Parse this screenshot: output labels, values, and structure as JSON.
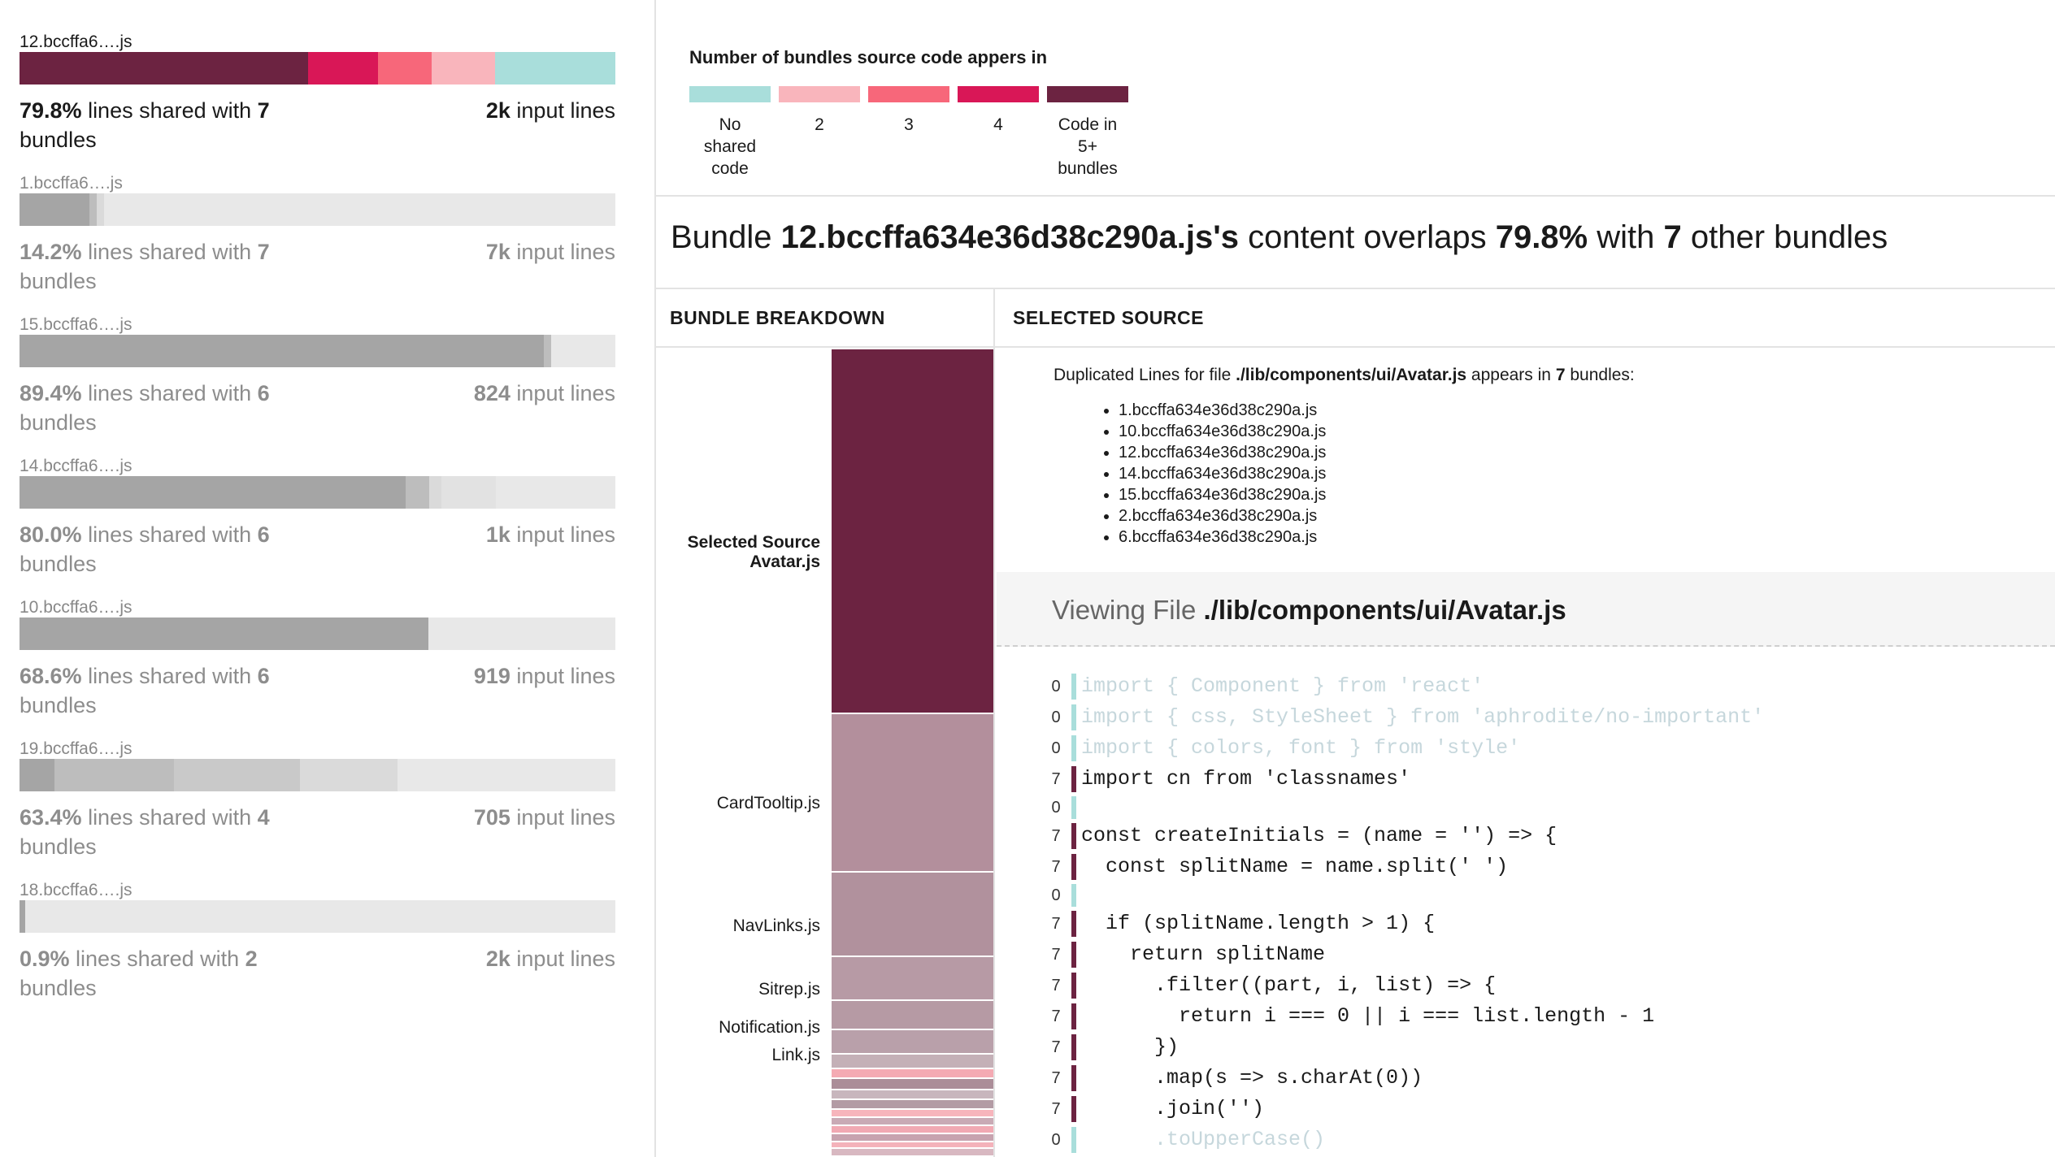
{
  "colors": {
    "none": "#a9dedb",
    "two": "#f9b5bc",
    "three": "#f7677a",
    "four": "#d91757",
    "five_plus": "#6c2341",
    "gray_dark": "#a5a5a5",
    "gray_mid": "#bdbdbd",
    "gray_light": "#dadada",
    "track": "#e8e8e8",
    "card_tooltip": "#b38f9c",
    "navlinks": "#b1919d",
    "faded_code": "#c6d7dc"
  },
  "bundles": [
    {
      "name": "12.bccffa6….js",
      "percent": "79.8%",
      "stat_mid": " lines shared with ",
      "shared_with": "7",
      "stat_end": " bundles",
      "lines": "2k",
      "lines_suffix": " input lines",
      "segments": [
        {
          "fraction": 0.484,
          "color": "five_plus"
        },
        {
          "fraction": 0.117,
          "color": "four"
        },
        {
          "fraction": 0.09,
          "color": "three"
        },
        {
          "fraction": 0.107,
          "color": "two"
        },
        {
          "fraction": 0.202,
          "color": "none"
        }
      ]
    },
    {
      "name": "1.bccffa6….js",
      "percent": "14.2%",
      "stat_mid": " lines shared with ",
      "shared_with": "7",
      "stat_end": " bundles",
      "lines": "7k",
      "lines_suffix": " input lines",
      "segments": [
        {
          "fraction": 0.118,
          "color": "gray_dark"
        },
        {
          "fraction": 0.012,
          "color": "gray_mid"
        },
        {
          "fraction": 0.012,
          "color": "gray_light"
        },
        {
          "fraction": 0.858,
          "color": "track"
        }
      ]
    },
    {
      "name": "15.bccffa6….js",
      "percent": "89.4%",
      "stat_mid": " lines shared with ",
      "shared_with": "6",
      "stat_end": " bundles",
      "lines": "824",
      "lines_suffix": " input lines",
      "segments": [
        {
          "fraction": 0.88,
          "color": "gray_dark"
        },
        {
          "fraction": 0.012,
          "color": "gray_mid"
        },
        {
          "fraction": 0.108,
          "color": "track"
        }
      ]
    },
    {
      "name": "14.bccffa6….js",
      "percent": "80.0%",
      "stat_mid": " lines shared with ",
      "shared_with": "6",
      "stat_end": " bundles",
      "lines": "1k",
      "lines_suffix": " input lines",
      "segments": [
        {
          "fraction": 0.648,
          "color": "gray_dark"
        },
        {
          "fraction": 0.04,
          "color": "gray_mid"
        },
        {
          "fraction": 0.02,
          "color": "gray_light"
        },
        {
          "fraction": 0.092,
          "color": "#e2e2e2"
        },
        {
          "fraction": 0.2,
          "color": "track"
        }
      ]
    },
    {
      "name": "10.bccffa6….js",
      "percent": "68.6%",
      "stat_mid": " lines shared with ",
      "shared_with": "6",
      "stat_end": " bundles",
      "lines": "919",
      "lines_suffix": " input lines",
      "segments": [
        {
          "fraction": 0.686,
          "color": "gray_dark"
        },
        {
          "fraction": 0.314,
          "color": "track"
        }
      ]
    },
    {
      "name": "19.bccffa6….js",
      "percent": "63.4%",
      "stat_mid": " lines shared with ",
      "shared_with": "4",
      "stat_end": " bundles",
      "lines": "705",
      "lines_suffix": " input lines",
      "segments": [
        {
          "fraction": 0.058,
          "color": "gray_dark"
        },
        {
          "fraction": 0.2,
          "color": "gray_mid"
        },
        {
          "fraction": 0.212,
          "color": "#c9c9c9"
        },
        {
          "fraction": 0.164,
          "color": "gray_light"
        },
        {
          "fraction": 0.366,
          "color": "track"
        }
      ]
    },
    {
      "name": "18.bccffa6….js",
      "percent": "0.9%",
      "stat_mid": " lines shared with ",
      "shared_with": "2",
      "stat_end": " bundles",
      "lines": "2k",
      "lines_suffix": " input lines",
      "segments": [
        {
          "fraction": 0.009,
          "color": "gray_dark"
        },
        {
          "fraction": 0.991,
          "color": "track"
        }
      ]
    }
  ],
  "legend": {
    "title": "Number of bundles source code appers in",
    "items": [
      {
        "label": "No shared code",
        "color": "none"
      },
      {
        "label": "2",
        "color": "two"
      },
      {
        "label": "3",
        "color": "three"
      },
      {
        "label": "4",
        "color": "four"
      },
      {
        "label": "Code in 5+ bundles",
        "color": "five_plus"
      }
    ]
  },
  "summary": {
    "prefix": "Bundle ",
    "bundle": "12.bccffa634e36d38c290a.js's",
    "middle": " content overlaps ",
    "percent": "79.8%",
    "with": " with ",
    "count": "7",
    "suffix": " other bundles"
  },
  "breakdown": {
    "header": "BUNDLE BREAKDOWN",
    "selected_label": "Selected Source",
    "selected_file": "Avatar.js",
    "labels": [
      "CardTooltip.js",
      "NavLinks.js",
      "Sitrep.js",
      "Notification.js",
      "Link.js"
    ]
  },
  "source": {
    "header": "SELECTED SOURCE",
    "intro_prefix": "Duplicated Lines for file ",
    "file": "./lib/components/ui/Avatar.js",
    "intro_mid": " appears in ",
    "count": "7",
    "intro_suffix": " bundles:",
    "bundles": [
      "1.bccffa634e36d38c290a.js",
      "10.bccffa634e36d38c290a.js",
      "12.bccffa634e36d38c290a.js",
      "14.bccffa634e36d38c290a.js",
      "15.bccffa634e36d38c290a.js",
      "2.bccffa634e36d38c290a.js",
      "6.bccffa634e36d38c290a.js"
    ],
    "viewing_prefix": "Viewing File ",
    "viewing_file": "./lib/components/ui/Avatar.js"
  },
  "code": [
    {
      "count": "0",
      "text": "import { Component } from 'react'",
      "faded": true
    },
    {
      "count": "0",
      "text": "import { css, StyleSheet } from 'aphrodite/no-important'",
      "faded": true
    },
    {
      "count": "0",
      "text": "import { colors, font } from 'style'",
      "faded": true
    },
    {
      "count": "7",
      "text": "import cn from 'classnames'",
      "faded": false
    },
    {
      "count": "0",
      "text": "",
      "faded": false,
      "gap": true
    },
    {
      "count": "7",
      "text": "const createInitials = (name = '') => {",
      "faded": false
    },
    {
      "count": "7",
      "text": "  const splitName = name.split(' ')",
      "faded": false
    },
    {
      "count": "0",
      "text": "",
      "faded": false,
      "gap": true
    },
    {
      "count": "7",
      "text": "  if (splitName.length > 1) {",
      "faded": false
    },
    {
      "count": "7",
      "text": "    return splitName",
      "faded": false
    },
    {
      "count": "7",
      "text": "      .filter((part, i, list) => {",
      "faded": false
    },
    {
      "count": "7",
      "text": "        return i === 0 || i === list.length - 1",
      "faded": false
    },
    {
      "count": "7",
      "text": "      })",
      "faded": false
    },
    {
      "count": "7",
      "text": "      .map(s => s.charAt(0))",
      "faded": false
    },
    {
      "count": "7",
      "text": "      .join('')",
      "faded": false
    },
    {
      "count": "0",
      "text": "      .toUpperCase()",
      "faded": true
    }
  ]
}
